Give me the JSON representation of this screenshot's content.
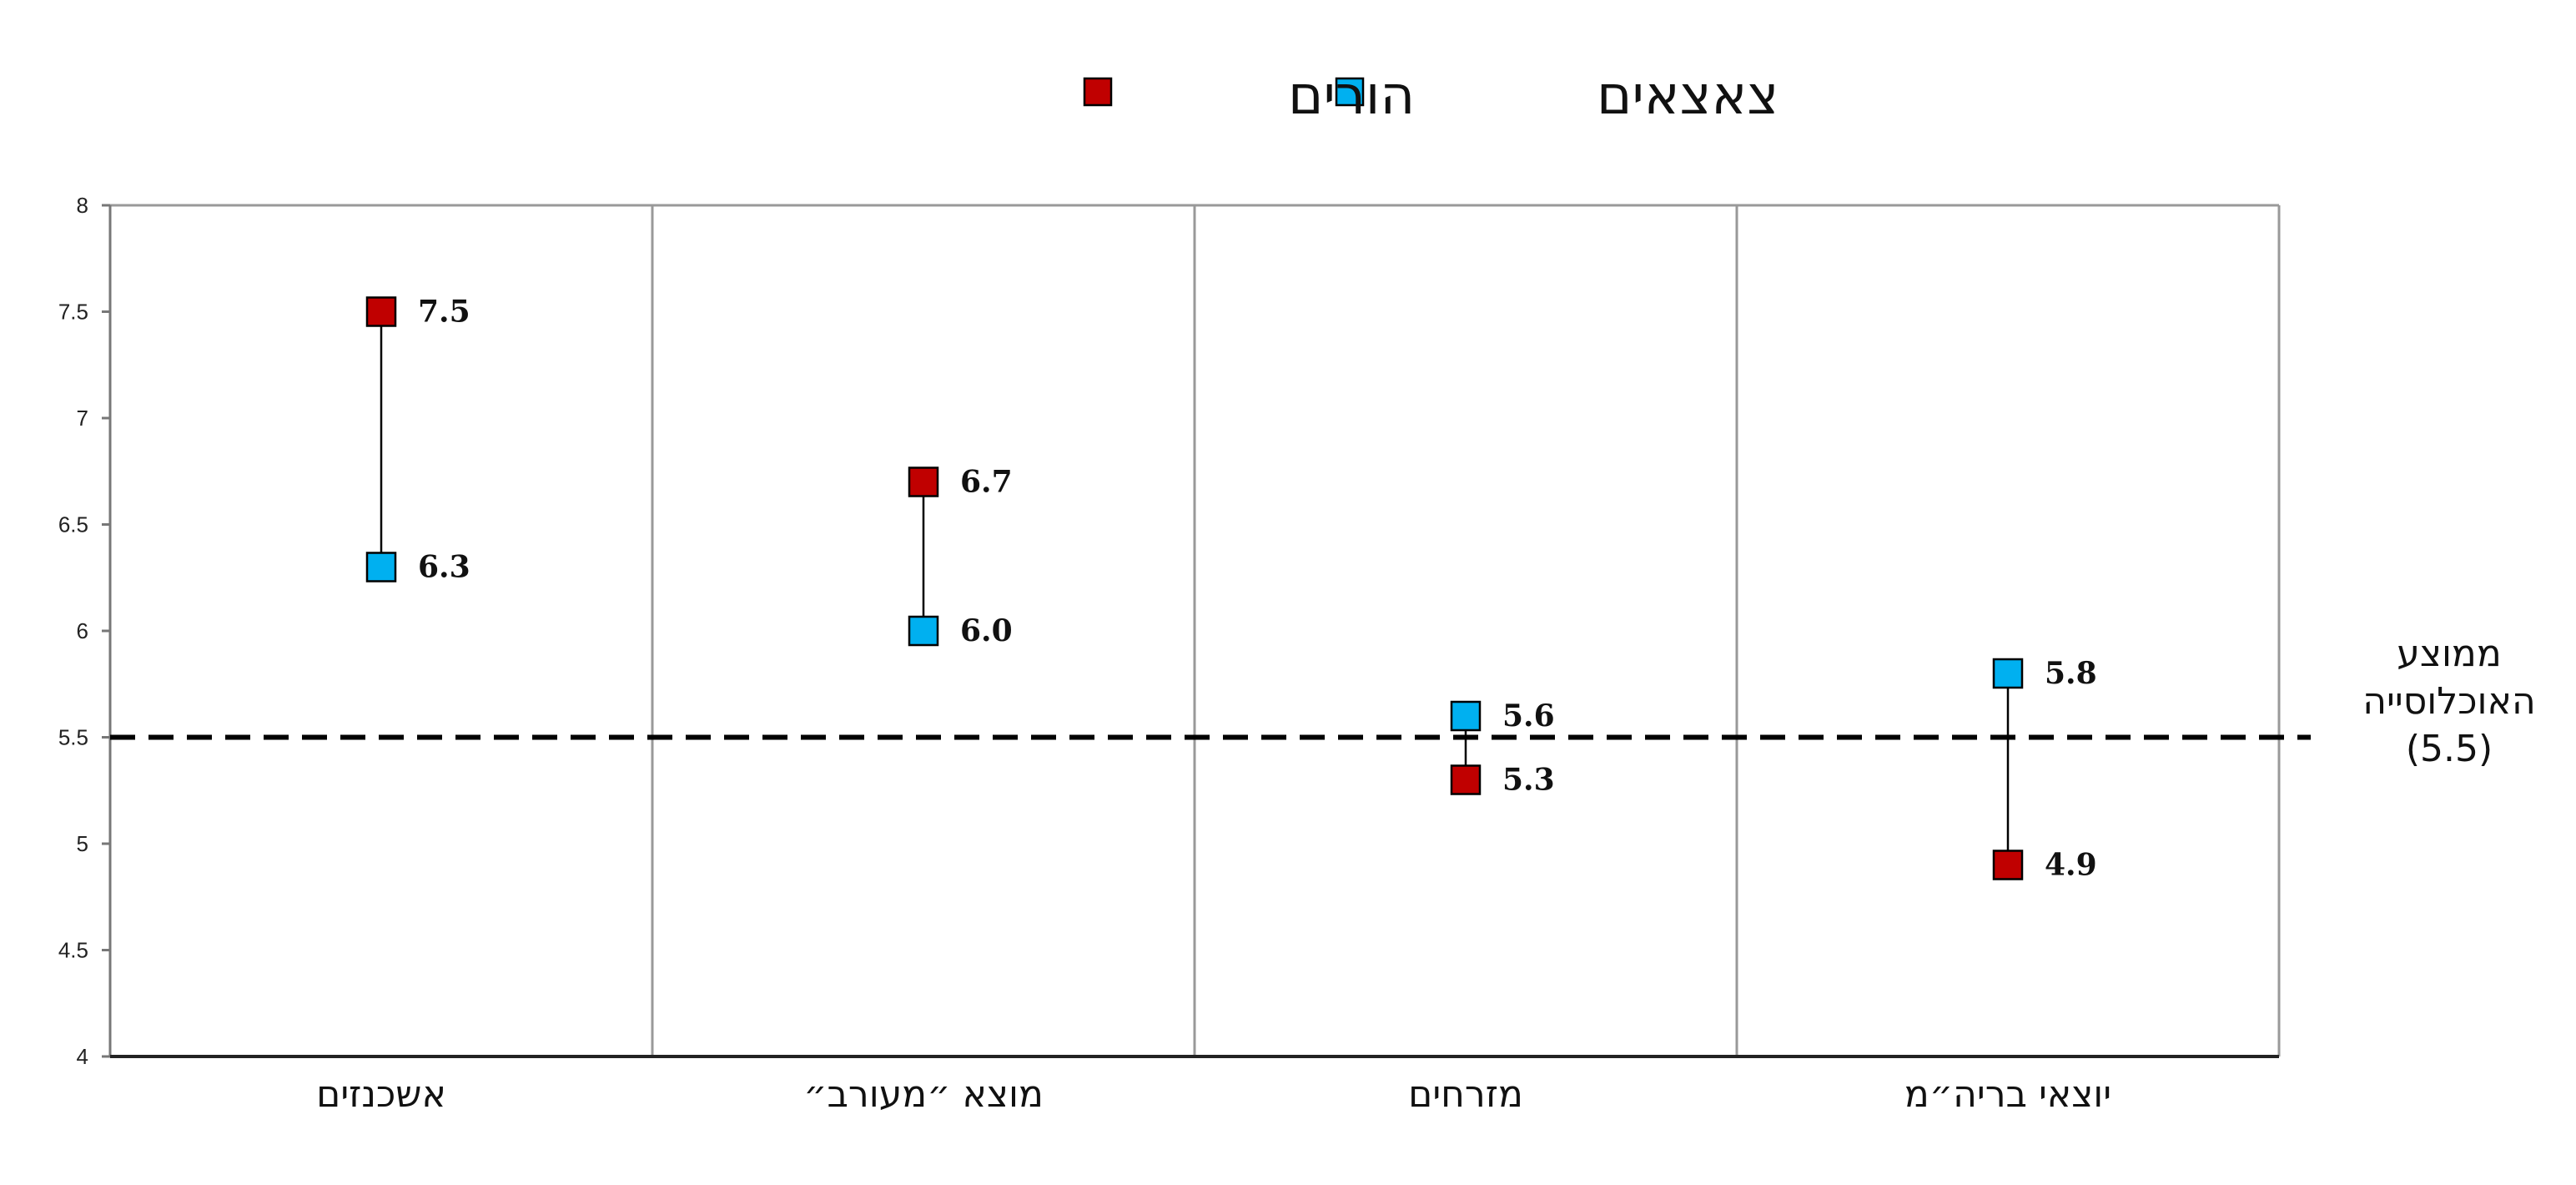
{
  "chart_data": {
    "type": "scatter",
    "categories": [
      "אשכנזים",
      "מוצא ״מעורב״",
      "מזרחים",
      "יוצאי בריה״מ"
    ],
    "series": [
      {
        "name": "הורים",
        "color": "#C00000",
        "values": [
          7.5,
          6.7,
          5.3,
          4.9
        ]
      },
      {
        "name": "צאצאים",
        "color": "#00B0F0",
        "values": [
          6.3,
          6.0,
          5.6,
          5.8
        ]
      }
    ],
    "data_labels": {
      "הורים": [
        "7.5",
        "6.7",
        "5.3",
        "4.9"
      ],
      "צאצאים": [
        "6.3",
        "6.0",
        "5.6",
        "5.8"
      ]
    },
    "ylim": [
      4,
      8
    ],
    "yticks": [
      4,
      4.5,
      5,
      5.5,
      6,
      6.5,
      7,
      7.5,
      8
    ],
    "ytick_labels": [
      "4",
      "4.5",
      "5",
      "5.5",
      "6",
      "6.5",
      "7",
      "7.5",
      "8"
    ],
    "reference_line": {
      "value": 5.5,
      "label_lines": [
        "ממוצע",
        "האוכלוסייה",
        "(5.5)"
      ]
    },
    "legend": {
      "placement": "top-center"
    },
    "grid": "vertical-separators"
  }
}
